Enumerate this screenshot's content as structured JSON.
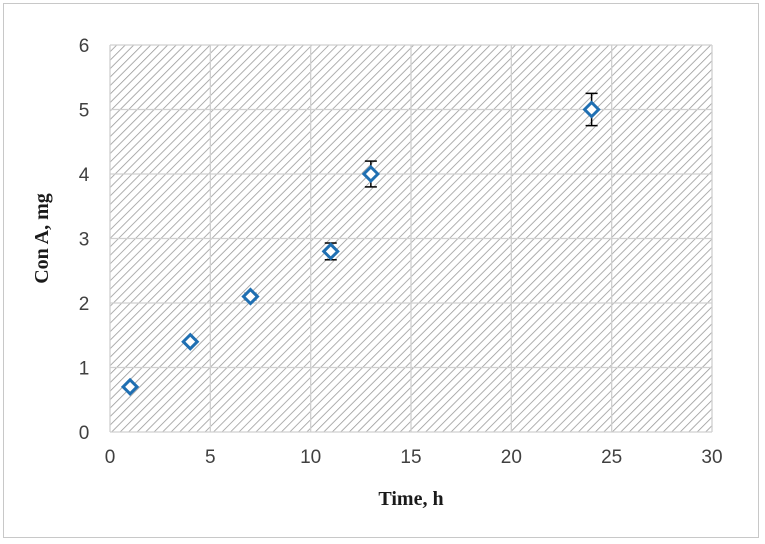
{
  "chart_data": {
    "type": "scatter",
    "title": "",
    "xlabel": "Time, h",
    "ylabel": "Con A, mg",
    "xlim": [
      0,
      30
    ],
    "ylim": [
      0,
      6
    ],
    "xticks": [
      0,
      5,
      10,
      15,
      20,
      25,
      30
    ],
    "yticks": [
      0,
      1,
      2,
      3,
      4,
      5,
      6
    ],
    "grid": true,
    "legend": "none",
    "plot_background": "diagonal-hatch",
    "series": [
      {
        "marker": "diamond-open",
        "color": "#1f6fb2",
        "points": [
          {
            "x": 1,
            "y": 0.7,
            "err": 0.0
          },
          {
            "x": 4,
            "y": 1.4,
            "err": 0.0
          },
          {
            "x": 7,
            "y": 2.1,
            "err": 0.05
          },
          {
            "x": 11,
            "y": 2.8,
            "err": 0.13
          },
          {
            "x": 13,
            "y": 4.0,
            "err": 0.2
          },
          {
            "x": 24,
            "y": 5.0,
            "err": 0.25
          }
        ]
      }
    ]
  }
}
